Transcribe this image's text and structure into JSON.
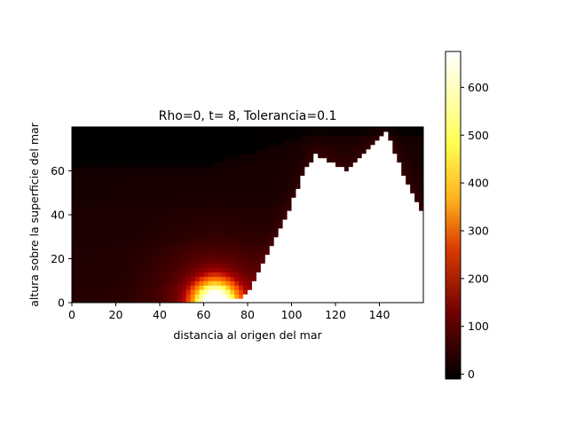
{
  "chart_data": {
    "type": "heatmap",
    "title": "Rho=0, t= 8, Tolerancia=0.1",
    "xlabel": "distancia al origen del mar",
    "ylabel": "altura sobre la superficie del mar",
    "xlim": [
      0,
      160
    ],
    "ylim": [
      0,
      80
    ],
    "xticks": [
      0,
      20,
      40,
      60,
      80,
      100,
      120,
      140
    ],
    "yticks": [
      0,
      20,
      40,
      60
    ],
    "colormap": "afmhot",
    "colorbar": {
      "min": -10,
      "max": 675,
      "ticks": [
        0,
        100,
        200,
        300,
        400,
        500,
        600
      ]
    },
    "heat_source": {
      "x": 65,
      "y": 0,
      "peak": 675
    },
    "terrain_profile": {
      "x": [
        62,
        70,
        76,
        80,
        84,
        92,
        100,
        106,
        111,
        116,
        121,
        125,
        129,
        134,
        139,
        143,
        146,
        150,
        155,
        160
      ],
      "y": [
        0,
        1,
        2,
        4,
        12,
        28,
        45,
        60,
        67,
        65,
        62,
        60,
        64,
        69,
        74,
        77,
        71,
        61,
        50,
        40
      ]
    },
    "regions": {
      "top_black_band_y": 62,
      "dark_band_y": [
        44,
        26,
        8
      ]
    },
    "colors": {
      "terrain": "#ffffff",
      "background_top": "#000000",
      "colormap_stops": [
        "#000000",
        "#550000",
        "#aa0000",
        "#ff5500",
        "#ffaa00",
        "#ffff55",
        "#ffffaa",
        "#ffffff"
      ]
    }
  }
}
